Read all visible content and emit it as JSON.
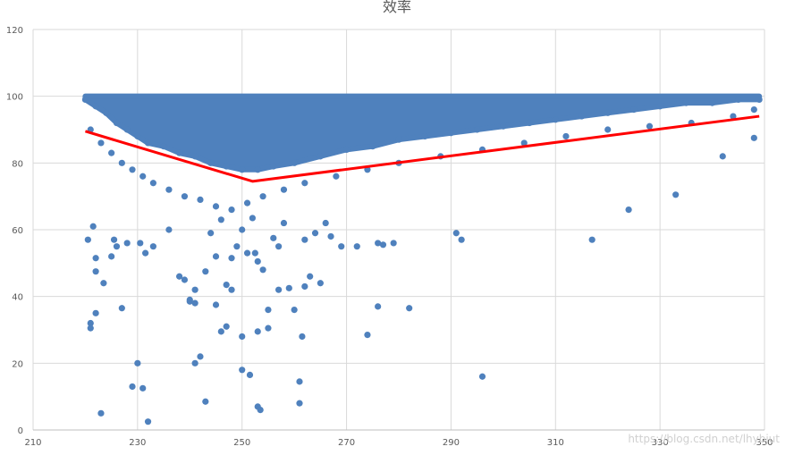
{
  "chart_data": {
    "type": "scatter",
    "title": "效率",
    "xlabel": "",
    "ylabel": "",
    "xlim": [
      210,
      350
    ],
    "ylim": [
      0,
      120
    ],
    "x_ticks": [
      "210",
      "230",
      "250",
      "270",
      "290",
      "310",
      "330",
      "350"
    ],
    "y_ticks": [
      "0",
      "20",
      "40",
      "60",
      "80",
      "100",
      "120"
    ],
    "grid": true,
    "legend": "none",
    "point_color": "#4f81bd",
    "trend_color": "#ff0000",
    "series": [
      {
        "type": "scatter",
        "points": [
          [
            220,
            99
          ],
          [
            222,
            97
          ],
          [
            224,
            95
          ],
          [
            226,
            92
          ],
          [
            228,
            90
          ],
          [
            230,
            88
          ],
          [
            232,
            86
          ],
          [
            235,
            85
          ],
          [
            238,
            83
          ],
          [
            241,
            82
          ],
          [
            244,
            80
          ],
          [
            247,
            79
          ],
          [
            250,
            78
          ],
          [
            253,
            78
          ],
          [
            256,
            79
          ],
          [
            260,
            80
          ],
          [
            265,
            82
          ],
          [
            270,
            84
          ],
          [
            275,
            85
          ],
          [
            280,
            87
          ],
          [
            285,
            88
          ],
          [
            290,
            89
          ],
          [
            295,
            90
          ],
          [
            300,
            91
          ],
          [
            305,
            92
          ],
          [
            310,
            93
          ],
          [
            315,
            94
          ],
          [
            320,
            95
          ],
          [
            325,
            96
          ],
          [
            330,
            97
          ],
          [
            335,
            98
          ],
          [
            340,
            98
          ],
          [
            345,
            99
          ],
          [
            349,
            99
          ],
          [
            221,
            90
          ],
          [
            223,
            86
          ],
          [
            225,
            83
          ],
          [
            227,
            80
          ],
          [
            229,
            78
          ],
          [
            231,
            76
          ],
          [
            233,
            74
          ],
          [
            236,
            72
          ],
          [
            239,
            70
          ],
          [
            242,
            69
          ],
          [
            245,
            67
          ],
          [
            248,
            66
          ],
          [
            251,
            68
          ],
          [
            254,
            70
          ],
          [
            258,
            72
          ],
          [
            262,
            74
          ],
          [
            268,
            76
          ],
          [
            274,
            78
          ],
          [
            280,
            80
          ],
          [
            288,
            82
          ],
          [
            296,
            84
          ],
          [
            304,
            86
          ],
          [
            312,
            88
          ],
          [
            320,
            90
          ],
          [
            328,
            91
          ],
          [
            336,
            92
          ],
          [
            344,
            94
          ],
          [
            348,
            96
          ],
          [
            220.5,
            57
          ],
          [
            221,
            32
          ],
          [
            221,
            30.5
          ],
          [
            221.5,
            61
          ],
          [
            222,
            51.5
          ],
          [
            222,
            47.5
          ],
          [
            222,
            35
          ],
          [
            223,
            5
          ],
          [
            223.5,
            44
          ],
          [
            225,
            52
          ],
          [
            225.5,
            57
          ],
          [
            226,
            55
          ],
          [
            227,
            36.5
          ],
          [
            228,
            56
          ],
          [
            229,
            13
          ],
          [
            230,
            20
          ],
          [
            230.5,
            56
          ],
          [
            231,
            12.5
          ],
          [
            231.5,
            53
          ],
          [
            232,
            2.5
          ],
          [
            233,
            55
          ],
          [
            236,
            60
          ],
          [
            238,
            46
          ],
          [
            239,
            45
          ],
          [
            240,
            39
          ],
          [
            240,
            38.5
          ],
          [
            241,
            42
          ],
          [
            241,
            38
          ],
          [
            241,
            20
          ],
          [
            242,
            22
          ],
          [
            243,
            8.5
          ],
          [
            243,
            47.5
          ],
          [
            244,
            59
          ],
          [
            245,
            52
          ],
          [
            245,
            37.5
          ],
          [
            246,
            29.5
          ],
          [
            246,
            63
          ],
          [
            247,
            31
          ],
          [
            247,
            43.5
          ],
          [
            248,
            42
          ],
          [
            248,
            51.5
          ],
          [
            249,
            55
          ],
          [
            250,
            18
          ],
          [
            250,
            28
          ],
          [
            250,
            60
          ],
          [
            251,
            53
          ],
          [
            251.5,
            16.5
          ],
          [
            252,
            63.5
          ],
          [
            252.5,
            53
          ],
          [
            253,
            7
          ],
          [
            253,
            29.5
          ],
          [
            253,
            50.5
          ],
          [
            253.5,
            6
          ],
          [
            254,
            48
          ],
          [
            255,
            30.5
          ],
          [
            255,
            36
          ],
          [
            256,
            57.5
          ],
          [
            257,
            42
          ],
          [
            257,
            55
          ],
          [
            258,
            62
          ],
          [
            259,
            42.5
          ],
          [
            260,
            36
          ],
          [
            261,
            14.5
          ],
          [
            261,
            8
          ],
          [
            261.5,
            28
          ],
          [
            262,
            43
          ],
          [
            262,
            57
          ],
          [
            263,
            46
          ],
          [
            264,
            59
          ],
          [
            265,
            44
          ],
          [
            266,
            62
          ],
          [
            267,
            58
          ],
          [
            269,
            55
          ],
          [
            272,
            55
          ],
          [
            274,
            28.5
          ],
          [
            276,
            37
          ],
          [
            276,
            56
          ],
          [
            277,
            55.5
          ],
          [
            279,
            56
          ],
          [
            282,
            36.5
          ],
          [
            291,
            59
          ],
          [
            292,
            57
          ],
          [
            296,
            16
          ],
          [
            317,
            57
          ],
          [
            324,
            66
          ],
          [
            333,
            70.5
          ],
          [
            348,
            87.5
          ],
          [
            342,
            82
          ]
        ]
      },
      {
        "type": "line",
        "name": "",
        "x": [
          220,
          252,
          349
        ],
        "y": [
          89.5,
          74.5,
          94
        ]
      }
    ]
  },
  "watermark": "https://blog.csdn.net/lhybjut"
}
